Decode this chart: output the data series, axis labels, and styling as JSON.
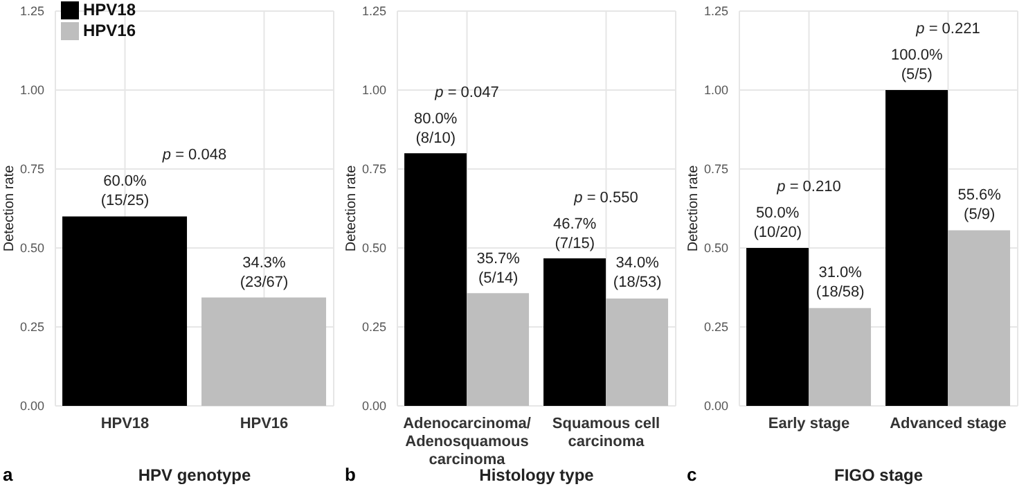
{
  "chart_data": [
    {
      "type": "bar",
      "stacked": true,
      "xlabel": "HPV genotype",
      "ylabel": "Detection rate",
      "categories": [
        "HPV18",
        "HPV16"
      ],
      "ylim": [
        0,
        1.25
      ],
      "yticks": [
        {
          "value": 0,
          "label": "0.00"
        },
        0.25,
        {
          "value": 0.5,
          "label": "0.50"
        },
        0.75,
        {
          "value": 1,
          "label": "1.00"
        },
        1.25
      ],
      "grid": true,
      "legend": "top left",
      "series": [
        {
          "name": "HPV18",
          "color": "#000000",
          "values": [
            0.6,
            null
          ],
          "value_labels": [
            "60.0%\n(15/25)",
            null
          ]
        },
        {
          "name": "HPV16",
          "color": "#bebebe",
          "values": [
            null,
            0.343
          ],
          "value_labels": [
            null,
            "34.3%\n(23/67)"
          ]
        }
      ],
      "annotations": [
        "p = 0.048",
        "a"
      ]
    },
    {
      "type": "bar",
      "xlabel": "Histology type",
      "ylabel": "Detection rate",
      "categories": [
        "Adenocarcinoma/\nAdenosquamous carcinoma",
        "Squamous cell carcinoma"
      ],
      "ylim": [
        0,
        1.25
      ],
      "yticks": [
        {
          "value": 0,
          "label": "0.00"
        },
        0.25,
        {
          "value": 0.5,
          "label": "0.50"
        },
        0.75,
        {
          "value": 1,
          "label": "1.00"
        },
        1.25
      ],
      "grid": true,
      "series": [
        {
          "color": "#000000",
          "values": [
            0.8,
            0.467
          ],
          "value_labels": [
            "80.0%\n(8/10)",
            "46.7%\n(7/15)"
          ]
        },
        {
          "color": "#bebebe",
          "values": [
            0.357,
            0.34
          ],
          "value_labels": [
            "35.7%\n(5/14)",
            "34.0%\n(18/53)"
          ]
        }
      ],
      "annotations": [
        "p = 0.047",
        "p = 0.550",
        "b"
      ]
    },
    {
      "type": "bar",
      "xlabel": "FIGO stage",
      "ylabel": "Detection rate",
      "categories": [
        "Early stage",
        "Advanced stage"
      ],
      "ylim": [
        0,
        1.25
      ],
      "yticks": [
        {
          "value": 0,
          "label": "0.00"
        },
        0.25,
        {
          "value": 0.5,
          "label": "0.50"
        },
        0.75,
        {
          "value": 1,
          "label": "1.00"
        },
        1.25
      ],
      "grid": true,
      "series": [
        {
          "color": "#000000",
          "values": [
            0.5,
            1.0
          ],
          "value_labels": [
            "50.0%\n(10/20)",
            "100.0%\n(5/5)"
          ]
        },
        {
          "color": "#bebebe",
          "values": [
            0.31,
            0.556
          ],
          "value_labels": [
            "31.0%\n(18/58)",
            "55.6%\n(5/9)"
          ]
        }
      ],
      "annotations": [
        "p = 0.210",
        "p = 0.221",
        "c"
      ]
    }
  ]
}
